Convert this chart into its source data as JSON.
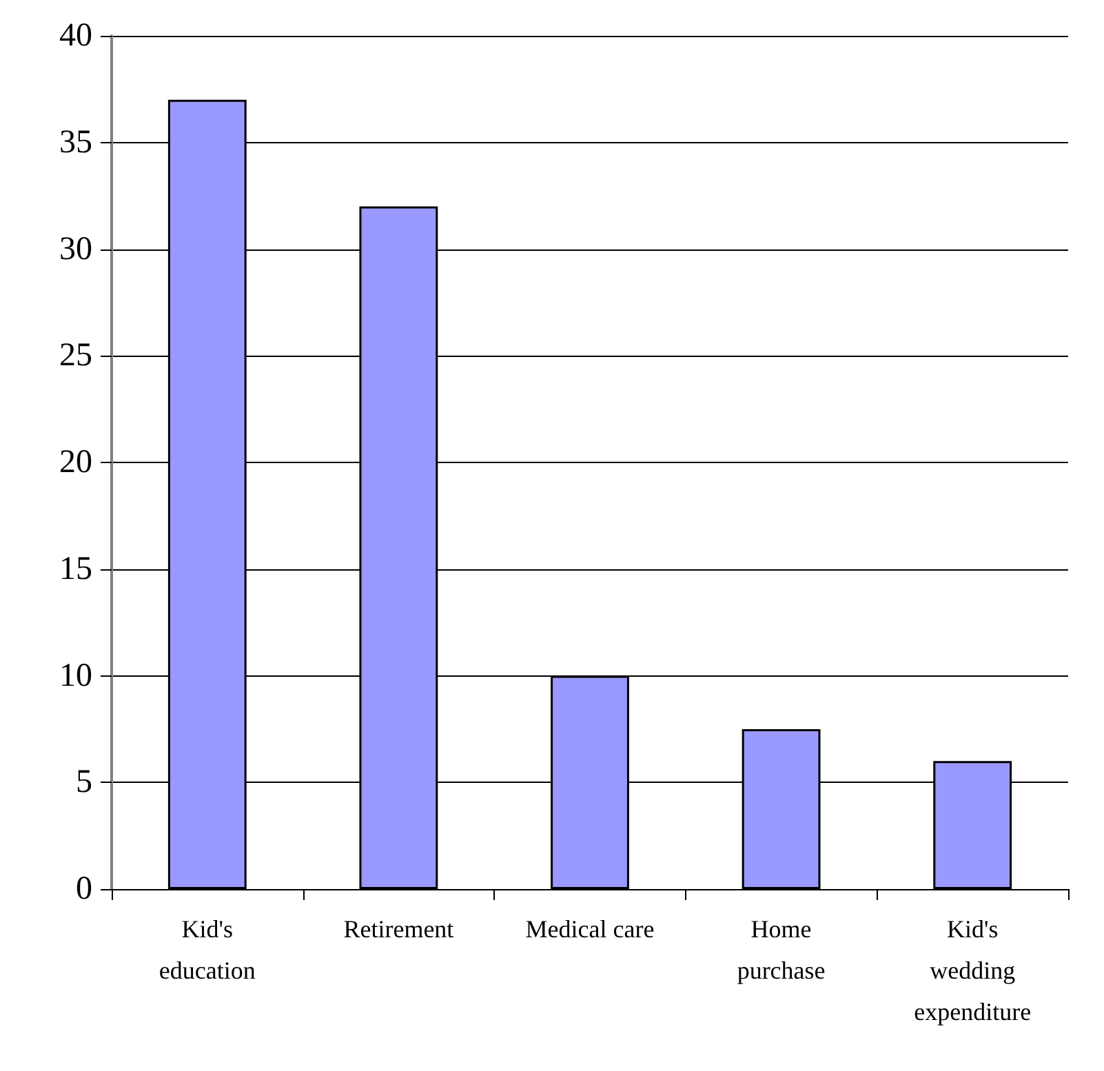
{
  "chart_data": {
    "type": "bar",
    "categories": [
      "Kid's\neducation",
      "Retirement",
      "Medical care",
      "Home\npurchase",
      "Kid's\nwedding\nexpenditure"
    ],
    "values": [
      37,
      32,
      10,
      7.5,
      6
    ],
    "color": "#9999ff",
    "ylim": [
      0,
      40
    ],
    "yticks": [
      0,
      5,
      10,
      15,
      20,
      25,
      30,
      35,
      40
    ],
    "grid": "y"
  }
}
